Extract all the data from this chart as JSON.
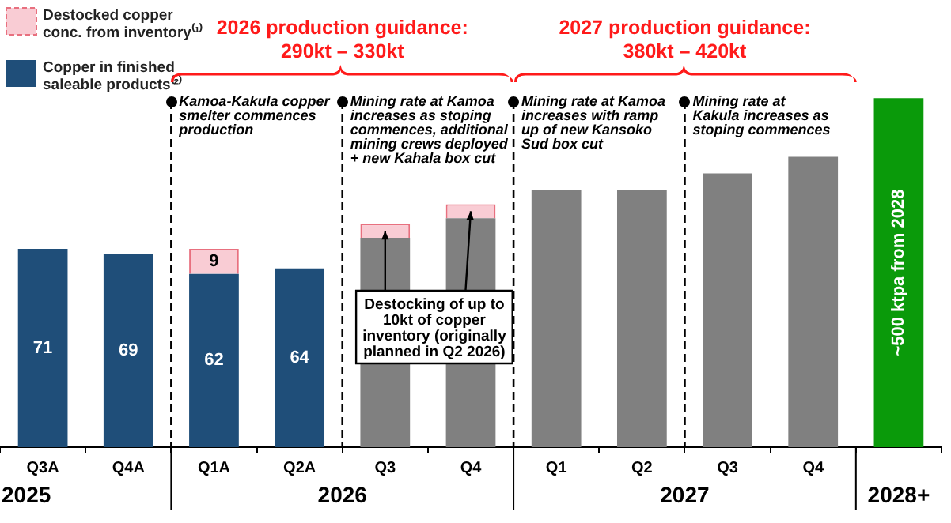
{
  "chart_data": {
    "type": "bar",
    "stacked": true,
    "legend": "top left",
    "tick_labels": "x",
    "categories": [
      "Q3A",
      "Q4A",
      "Q1A",
      "Q2A",
      "Q3",
      "Q4",
      "Q1",
      "Q2",
      "Q3",
      "Q4",
      null
    ],
    "series": [
      {
        "name": "Copper in finished saleable products⁽²⁾",
        "color": "#1f4e79",
        "values": [
          71,
          69,
          62,
          64,
          null,
          null,
          null,
          null,
          null,
          null,
          null
        ],
        "value_labels": [
          "71",
          "69",
          "62",
          "64",
          null,
          null,
          null,
          null,
          null,
          null,
          null
        ]
      },
      {
        "color": "#808080",
        "values": [
          null,
          null,
          null,
          null,
          75,
          82,
          92,
          92,
          98,
          104,
          null
        ]
      },
      {
        "color": "#0a9a0a",
        "values": [
          null,
          null,
          null,
          null,
          null,
          null,
          null,
          null,
          null,
          null,
          125
        ],
        "value_labels": [
          null,
          null,
          null,
          null,
          null,
          null,
          null,
          null,
          null,
          null,
          "~500 ktpa from 2028"
        ]
      },
      {
        "name": "Destocked copper conc. from inventory⁽¹⁾",
        "color": "#f9ccd4",
        "values": [
          null,
          null,
          9,
          null,
          5,
          5,
          null,
          null,
          null,
          null,
          null
        ],
        "value_labels": [
          null,
          null,
          "9",
          null,
          null,
          null,
          null,
          null,
          null,
          null,
          null
        ]
      }
    ],
    "annotations": [
      "2026 production guidance:\n290kt – 330kt",
      "2027 production guidance:\n380kt – 420kt",
      "Kamoa-Kakula copper\nsmelter commences\nproduction",
      "Mining rate at Kamoa\nincreases as stoping\ncommences, additional\nmining crews deployed\n+ new Kahala box cut",
      "Mining rate at Kamoa\nincreases with ramp\nup of new Kansoko\nSud box cut",
      "Mining rate at\nKakula increases as\nstoping commences",
      "Destocking of up to\n10kt of copper\ninventory (originally\nplanned in Q2 2026)",
      "2025",
      "2026",
      "2027",
      "2028+"
    ]
  }
}
